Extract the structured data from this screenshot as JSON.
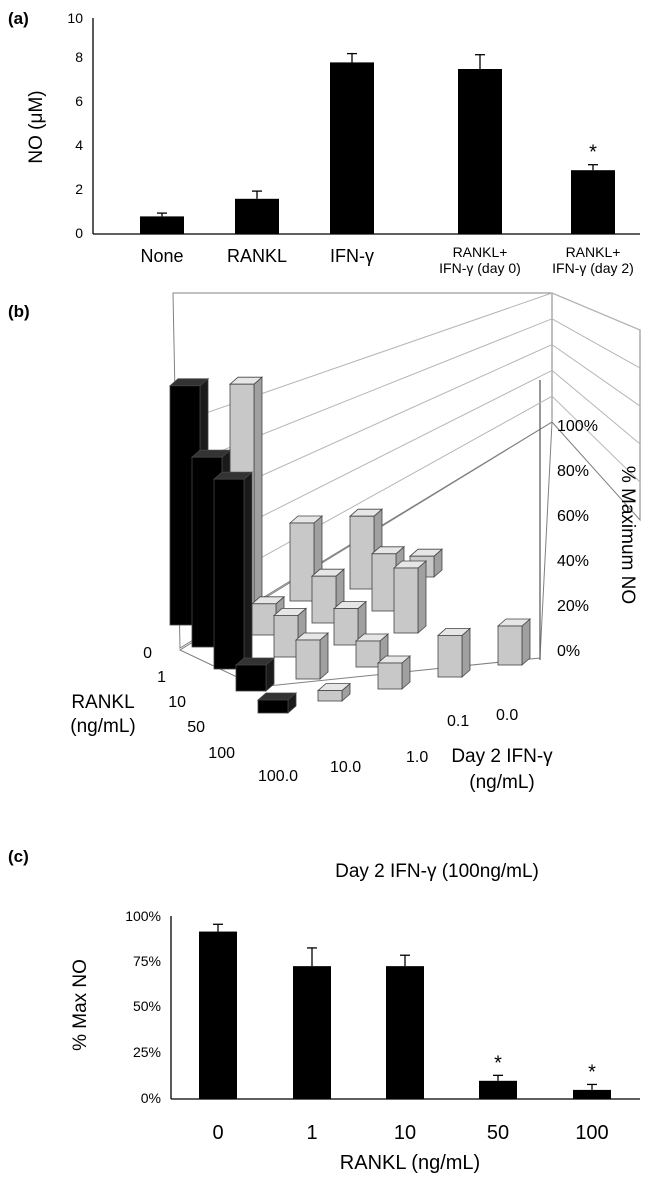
{
  "panels": {
    "a": {
      "label": "(a)"
    },
    "b": {
      "label": "(b)"
    },
    "c": {
      "label": "(c)"
    }
  },
  "colors": {
    "black_bars": "#000000",
    "grey_bars": "#c8c8c8",
    "grid": "#b5b5b5"
  },
  "chart_data": [
    {
      "id": "a",
      "type": "bar",
      "categories": [
        "None",
        "RANKL",
        "IFN-γ",
        "RANKL+|IFN-γ (day 0)",
        "RANKL+|IFN-γ (day 2)"
      ],
      "values": [
        0.8,
        1.6,
        7.8,
        7.5,
        2.9
      ],
      "errors": [
        0.15,
        0.35,
        0.4,
        0.65,
        0.25
      ],
      "significance": [
        "",
        "",
        "",
        "",
        "*"
      ],
      "ylabel": "NO (μM)",
      "ylim": [
        0,
        10
      ],
      "yticks": [
        "0",
        "2",
        "4",
        "6",
        "8",
        "10"
      ],
      "xlabel": "",
      "grid": false
    },
    {
      "id": "b",
      "type": "bar3d",
      "x_label": "RANKL|(ng/mL)",
      "x_categories": [
        "0",
        "1",
        "10",
        "50",
        "100"
      ],
      "y_label": "Day 2 IFN-γ|(ng/mL)",
      "y_categories": [
        "100.0",
        "10.0",
        "1.0",
        "0.1",
        "0.0"
      ],
      "z_label": "% Maximum NO",
      "z_ticks": [
        "0%",
        "20%",
        "40%",
        "60%",
        "80%",
        "100%"
      ],
      "z_range": [
        0,
        100
      ],
      "values_percent": [
        [
          92,
          88,
          30,
          28,
          8
        ],
        [
          73,
          12,
          18,
          22,
          0
        ],
        [
          73,
          16,
          14,
          25,
          0
        ],
        [
          10,
          15,
          10,
          0,
          0
        ],
        [
          5,
          4,
          10,
          16,
          15
        ]
      ],
      "grid": true
    },
    {
      "id": "c",
      "type": "bar",
      "title": "Day 2 IFN-γ (100ng/mL)",
      "categories": [
        "0",
        "1",
        "10",
        "50",
        "100"
      ],
      "values": [
        92,
        73,
        73,
        10,
        5
      ],
      "errors": [
        4,
        10,
        6,
        3,
        3
      ],
      "significance": [
        "",
        "",
        "",
        "*",
        "*"
      ],
      "ylabel": "% Max NO",
      "xlabel": "RANKL (ng/mL)",
      "ylim": [
        0,
        100
      ],
      "yticks": [
        "0%",
        "25%",
        "50%",
        "75%",
        "100%"
      ],
      "grid": false
    }
  ]
}
